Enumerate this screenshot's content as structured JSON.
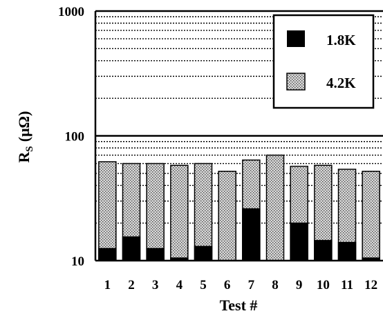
{
  "chart_data": {
    "type": "bar",
    "scale": "log",
    "ylim": [
      10,
      1000
    ],
    "yticks": [
      "10",
      "100",
      "1000"
    ],
    "xlabel": "Test #",
    "ylabel": "R",
    "ylabel_sub": "S",
    "ylabel_unit": "(μΩ)",
    "categories": [
      "1",
      "2",
      "3",
      "4",
      "5",
      "6",
      "7",
      "8",
      "9",
      "10",
      "11",
      "12"
    ],
    "series": [
      {
        "name": "1.8K",
        "color": "#000000",
        "values": [
          12.5,
          15.5,
          12.5,
          10.5,
          13,
          null,
          26,
          null,
          20,
          14.5,
          14,
          10.5
        ]
      },
      {
        "name": "4.2K",
        "pattern": "stippled gray",
        "values": [
          62,
          60,
          60,
          58,
          60,
          52,
          64,
          70,
          57,
          58,
          54,
          52
        ]
      }
    ],
    "legend": {
      "placement": "top-right"
    },
    "grid": "dotted horizontal lines"
  }
}
